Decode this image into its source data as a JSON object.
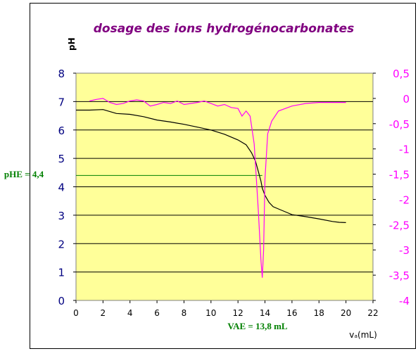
{
  "chart_data": {
    "type": "line",
    "title": "dosage des ions hydrogénocarbonates",
    "ylabel": "pH",
    "xlabel": "vₐ(mL)",
    "y2label": "",
    "xlim": [
      0,
      22
    ],
    "ylim": [
      0,
      8
    ],
    "y2lim": [
      -4,
      0.5
    ],
    "x_ticks": [
      0,
      2,
      4,
      6,
      8,
      10,
      12,
      14,
      16,
      18,
      20,
      22
    ],
    "x_tick_labels": [
      "0",
      "2",
      "4",
      "6",
      "8",
      "10",
      "12",
      "14",
      "16",
      "18",
      "20",
      "22"
    ],
    "y_ticks": [
      0,
      1,
      2,
      3,
      4,
      5,
      6,
      7,
      8
    ],
    "y_tick_labels": [
      "0",
      "1",
      "2",
      "3",
      "4",
      "5",
      "6",
      "7",
      "8"
    ],
    "y2_ticks": [
      0.5,
      0,
      -0.5,
      -1,
      -1.5,
      -2,
      -2.5,
      -3,
      -3.5,
      -4
    ],
    "y2_tick_labels": [
      "0,5",
      "0",
      "-0,5",
      "-1",
      "-1,5",
      "-2",
      "-2,5",
      "-3",
      "-3,5",
      "-4"
    ],
    "grid": "horizontal",
    "series": [
      {
        "color": "#000000",
        "axis": "left",
        "x": [
          0,
          1,
          2,
          3,
          4,
          5,
          6,
          7,
          8,
          9,
          10,
          11,
          12,
          12.6,
          13,
          13.3,
          13.5,
          13.7,
          13.8,
          14.0,
          14.3,
          14.6,
          15,
          15.5,
          16,
          17,
          18,
          19,
          19.5,
          20
        ],
        "y": [
          6.7,
          6.7,
          6.72,
          6.58,
          6.55,
          6.47,
          6.35,
          6.28,
          6.2,
          6.1,
          6.0,
          5.85,
          5.65,
          5.48,
          5.2,
          4.9,
          4.55,
          4.2,
          3.95,
          3.7,
          3.45,
          3.3,
          3.22,
          3.12,
          3.02,
          2.95,
          2.87,
          2.78,
          2.75,
          2.74
        ]
      },
      {
        "color": "#ff00ff",
        "axis": "right",
        "x": [
          1,
          1.5,
          2,
          2.5,
          3,
          3.5,
          4,
          4.5,
          5,
          5.5,
          6,
          6.5,
          7,
          7.5,
          8,
          8.5,
          9,
          9.5,
          10,
          10.5,
          11,
          11.5,
          12,
          12.3,
          12.6,
          12.9,
          13.2,
          13.5,
          13.7,
          13.8,
          13.9,
          14.0,
          14.2,
          14.5,
          15,
          16,
          17,
          18,
          19,
          19.5,
          20
        ],
        "y": [
          -0.05,
          -0.02,
          0.0,
          -0.08,
          -0.12,
          -0.1,
          -0.05,
          -0.03,
          -0.05,
          -0.15,
          -0.12,
          -0.08,
          -0.1,
          -0.05,
          -0.12,
          -0.1,
          -0.08,
          -0.05,
          -0.1,
          -0.15,
          -0.12,
          -0.18,
          -0.2,
          -0.35,
          -0.25,
          -0.35,
          -0.9,
          -2.2,
          -3.2,
          -3.55,
          -3.0,
          -1.6,
          -0.7,
          -0.45,
          -0.25,
          -0.15,
          -0.1,
          -0.08,
          -0.08,
          -0.08,
          -0.08
        ]
      }
    ],
    "annotations": {
      "ph_equiv": {
        "label": "pHE = 4,4",
        "value": 4.4,
        "color": "#008000"
      },
      "v_equiv": {
        "label": "VAE = 13,8 mL",
        "value": 13.8,
        "color": "#008000"
      }
    }
  }
}
